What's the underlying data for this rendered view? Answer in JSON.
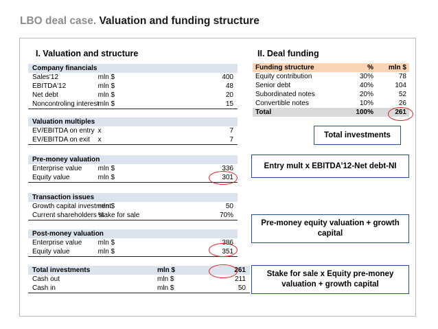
{
  "title": {
    "prefix": "LBO deal case.",
    "main": "Valuation and funding structure"
  },
  "left_panel": {
    "title": "I. Valuation and structure",
    "sections": [
      {
        "header": "Company financials",
        "rows": [
          {
            "label": "Sales'12",
            "unit": "mln $",
            "value": "400"
          },
          {
            "label": "EBITDA'12",
            "unit": "mln $",
            "value": "48"
          },
          {
            "label": "Net debt",
            "unit": "mln $",
            "value": "20"
          },
          {
            "label": "Noncontroling interest",
            "unit": "mln $",
            "value": "15"
          }
        ]
      },
      {
        "header": "Valuation multiples",
        "rows": [
          {
            "label": "EV/EBITDA on entry",
            "unit": "x",
            "value": "7"
          },
          {
            "label": "EV/EBITDA on exit",
            "unit": "x",
            "value": "7"
          }
        ]
      },
      {
        "header": "Pre-money valuation",
        "rows": [
          {
            "label": "Enterprise value",
            "unit": "mln $",
            "value": "336"
          },
          {
            "label": "Equity value",
            "unit": "mln $",
            "value": "301"
          }
        ]
      },
      {
        "header": "Transaction issues",
        "rows": [
          {
            "label": "Growth capital investment",
            "unit": "mln $",
            "value": "50"
          },
          {
            "label": "Current shareholders stake for sale",
            "unit": "%",
            "value": "70%"
          }
        ]
      },
      {
        "header": "Post-money valuation",
        "rows": [
          {
            "label": "Enterprise value",
            "unit": "mln $",
            "value": "386"
          },
          {
            "label": "Equity value",
            "unit": "mln $",
            "value": "351"
          }
        ]
      }
    ],
    "totals": {
      "label": "Total investments",
      "unit": "mln $",
      "value": "261",
      "rows": [
        {
          "label": "Cash out",
          "unit": "mln $",
          "value": "211"
        },
        {
          "label": "Cash in",
          "unit": "mln $",
          "value": "50"
        }
      ]
    }
  },
  "right_panel": {
    "title": "II. Deal funding",
    "headers": [
      "Funding structure",
      "%",
      "mln $"
    ],
    "rows": [
      {
        "label": "Equity contribution",
        "pct": "30%",
        "value": "78"
      },
      {
        "label": "Senior debt",
        "pct": "40%",
        "value": "104"
      },
      {
        "label": "Subordinated notes",
        "pct": "20%",
        "value": "52"
      },
      {
        "label": "Convertible notes",
        "pct": "10%",
        "value": "26"
      }
    ],
    "total": {
      "label": "Total",
      "pct": "100%",
      "value": "261"
    }
  },
  "callouts": {
    "total_investments": "Total investments",
    "entry_mult": "Entry mult x EBITDA’12-Net debt-NI",
    "pre_money": "Pre-money equity valuation + growth capital",
    "stake_sale": "Stake for sale x Equity pre-money valuation + growth capital"
  },
  "colors": {
    "section_header_bg": "#dbe3ef",
    "funding_header_bg": "#fbd4b4",
    "total_bg": "#d9d9d9",
    "callout_border": "#1f4e9e",
    "highlight_ring": "#e01b24",
    "title_prefix": "#8c8c8c"
  }
}
